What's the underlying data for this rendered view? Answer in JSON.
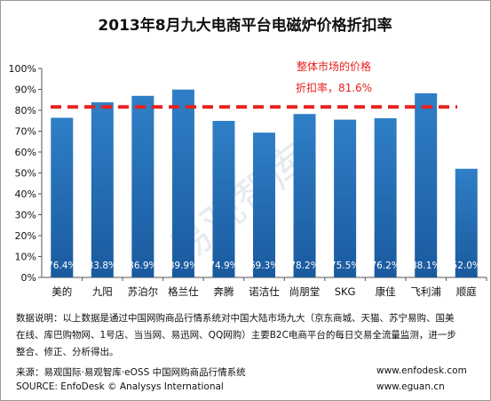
{
  "chart_data": {
    "type": "bar",
    "title": "2013年8月九大电商平台电磁炉价格折扣率",
    "categories": [
      "美的",
      "九阳",
      "苏泊尔",
      "格兰仕",
      "奔腾",
      "诺洁仕",
      "尚朋堂",
      "SKG",
      "康佳",
      "飞利浦",
      "顺庭"
    ],
    "values": [
      76.4,
      83.8,
      86.9,
      89.9,
      74.9,
      69.3,
      78.2,
      75.5,
      76.2,
      88.1,
      52.0
    ],
    "value_labels": [
      "76.4%",
      "83.8%",
      "86.9%",
      "89.9%",
      "74.9%",
      "69.3%",
      "78.2%",
      "75.5%",
      "76.2%",
      "88.1%",
      "52.0%"
    ],
    "y_ticks": [
      "0%",
      "10%",
      "20%",
      "30%",
      "40%",
      "50%",
      "60%",
      "70%",
      "80%",
      "90%",
      "100%"
    ],
    "ylim": [
      0,
      100
    ],
    "reference_line": {
      "value": 81.6,
      "label_line1": "整体市场的价格",
      "label_line2": "折扣率，81.6%",
      "color": "#e8211e"
    },
    "bar_color_top": "#2f7fc7",
    "bar_color_bottom": "#1a5a9e",
    "grid": false
  },
  "watermark": "易观智库",
  "note": {
    "line1": "数据说明：以上数据是通过中国网购商品行情系统对中国大陆市场九大（京东商城、天猫、苏宁易购、国美",
    "line2": "在线、库巴购物网、1号店、当当网、易迅网、QQ网购）主要B2C电商平台的每日交易全流量监测，进一步",
    "line3": "整合、修正、分析得出。"
  },
  "footer": {
    "source_cn": "来源：易观国际·易观智库·eOSS 中国网购商品行情系统",
    "source_en": "SOURCE: EnfoDesk © Analysys International",
    "url1": "www.enfodesk.com",
    "url2": "www.eguan.cn"
  }
}
